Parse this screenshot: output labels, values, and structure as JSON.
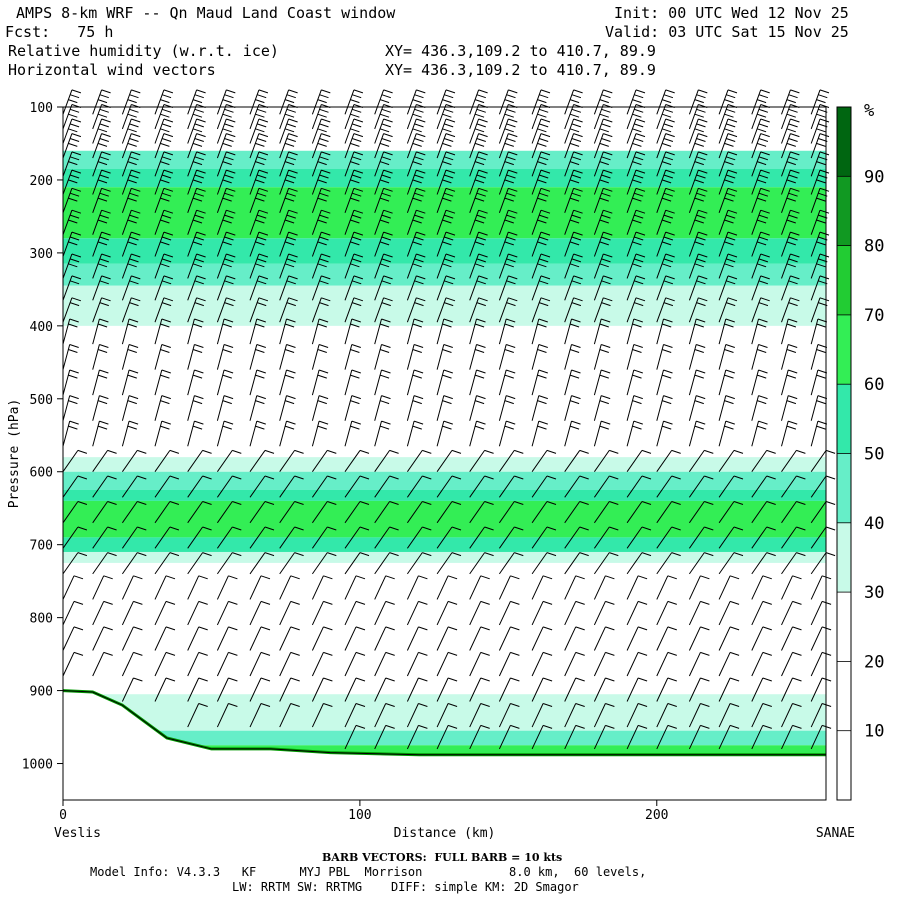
{
  "header": {
    "title": "AMPS 8-km WRF -- Qn Maud Land Coast window",
    "fcst": "Fcst:   75 h",
    "field1": "Relative humidity (w.r.t. ice)",
    "field2": "Horizontal wind vectors",
    "init": "Init: 00 UTC Wed 12 Nov 25",
    "valid": "Valid: 03 UTC Sat 15 Nov 25",
    "xy1": "XY= 436.3,109.2 to 410.7, 89.9",
    "xy2": "XY= 436.3,109.2 to 410.7, 89.9"
  },
  "footer": {
    "barb": "BARB VECTORS:  FULL BARB = 10 kts",
    "model": "Model Info: V4.3.3   KF      MYJ PBL  Morrison            8.0 km,  60 levels,",
    "physics": "LW: RRTM SW: RRTMG    DIFF: simple KM: 2D Smagor"
  },
  "chart_data": {
    "type": "heatmap",
    "title": "Relative humidity (w.r.t. ice) cross-section with horizontal wind barbs",
    "xlabel": "Distance (km)",
    "ylabel": "Pressure (hPa)",
    "xlim": [
      0,
      257
    ],
    "ylim": [
      1050,
      100
    ],
    "x_ticks": [
      0,
      100,
      200
    ],
    "y_ticks": [
      100,
      200,
      300,
      400,
      500,
      600,
      700,
      800,
      900,
      1000
    ],
    "left_endpoint": "Veslis",
    "right_endpoint": "SANAE",
    "colorbar": {
      "unit": "%",
      "levels": [
        10,
        20,
        30,
        40,
        50,
        60,
        70,
        80,
        90
      ],
      "colors": [
        "#ffffff",
        "#ffffff",
        "#ffffff",
        "#c8fae8",
        "#66eec8",
        "#33e8aa",
        "#33ee55",
        "#22cc33",
        "#119922",
        "#006611"
      ]
    },
    "humidity_bands": [
      {
        "p_top": 160,
        "p_bottom": 185,
        "rh_class": 40
      },
      {
        "p_top": 185,
        "p_bottom": 210,
        "rh_class": 50
      },
      {
        "p_top": 210,
        "p_bottom": 280,
        "rh_class": 60
      },
      {
        "p_top": 280,
        "p_bottom": 315,
        "rh_class": 50
      },
      {
        "p_top": 315,
        "p_bottom": 345,
        "rh_class": 40
      },
      {
        "p_top": 345,
        "p_bottom": 400,
        "rh_class": 30
      },
      {
        "p_top": 580,
        "p_bottom": 600,
        "rh_class": 30
      },
      {
        "p_top": 600,
        "p_bottom": 625,
        "rh_class": 40
      },
      {
        "p_top": 625,
        "p_bottom": 640,
        "rh_class": 50
      },
      {
        "p_top": 640,
        "p_bottom": 690,
        "rh_class": 60
      },
      {
        "p_top": 690,
        "p_bottom": 710,
        "rh_class": 50
      },
      {
        "p_top": 710,
        "p_bottom": 725,
        "rh_class": 30
      },
      {
        "p_top": 905,
        "p_bottom": 955,
        "rh_class": 30
      },
      {
        "p_top": 955,
        "p_bottom": 975,
        "rh_class": 40
      },
      {
        "p_top": 975,
        "p_bottom": 990,
        "rh_class": 60
      }
    ],
    "terrain_surface": [
      {
        "x": 0,
        "p": 900
      },
      {
        "x": 10,
        "p": 902
      },
      {
        "x": 20,
        "p": 920
      },
      {
        "x": 35,
        "p": 965
      },
      {
        "x": 50,
        "p": 980
      },
      {
        "x": 70,
        "p": 980
      },
      {
        "x": 90,
        "p": 985
      },
      {
        "x": 120,
        "p": 988
      },
      {
        "x": 257,
        "p": 988
      }
    ],
    "wind_barbs": {
      "column_x_km": [
        0,
        10,
        20,
        31,
        42,
        52,
        63,
        73,
        84,
        95,
        105,
        116,
        126,
        137,
        147,
        158,
        169,
        179,
        190,
        200,
        211,
        221,
        232,
        242,
        252
      ],
      "pressure_levels_hPa": [
        110,
        130,
        150,
        170,
        195,
        220,
        245,
        275,
        305,
        335,
        365,
        395,
        425,
        460,
        495,
        530,
        565,
        600,
        635,
        670,
        705,
        740,
        775,
        810,
        845,
        880,
        915,
        950,
        980
      ],
      "full_barb_kts": 10
    }
  }
}
